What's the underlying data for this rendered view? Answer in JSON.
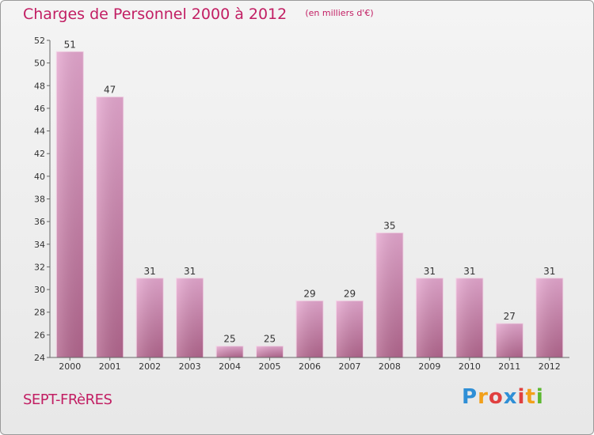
{
  "chart_data": {
    "type": "bar",
    "title": "Charges de Personnel 2000 à 2012",
    "subtitle": "(en milliers d'€)",
    "categories": [
      "2000",
      "2001",
      "2002",
      "2003",
      "2004",
      "2005",
      "2006",
      "2007",
      "2008",
      "2009",
      "2010",
      "2011",
      "2012"
    ],
    "values": [
      51,
      47,
      31,
      31,
      25,
      25,
      29,
      29,
      35,
      31,
      31,
      27,
      31
    ],
    "ylim": [
      24,
      52
    ],
    "yticks": [
      24,
      26,
      28,
      30,
      32,
      34,
      36,
      38,
      40,
      42,
      44,
      46,
      48,
      50,
      52
    ],
    "grid": false,
    "bar_color": "#d68ab8"
  },
  "footer": {
    "commune": "SEPT-FRèRES",
    "brand": [
      "P",
      "r",
      "o",
      "x",
      "i",
      "t",
      "i"
    ],
    "brand_colors": [
      "#2f8fd6",
      "#f2a01b",
      "#e04040",
      "#2f8fd6",
      "#e04040",
      "#f2a01b",
      "#5cb830"
    ]
  }
}
